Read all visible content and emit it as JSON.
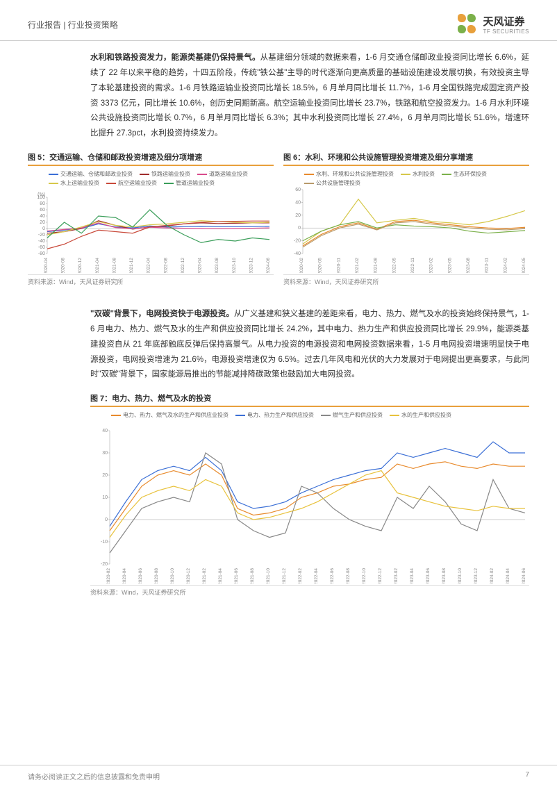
{
  "header": {
    "category": "行业报告 | 行业投资策略",
    "logo_cn": "天风证券",
    "logo_en": "TF SECURITIES",
    "petal_colors": [
      "#e8a03c",
      "#7bb04a",
      "#7bb04a",
      "#e8a03c"
    ]
  },
  "para1_lead": "水利和铁路投资发力，能源类基建仍保持景气。",
  "para1_body": "从基建细分领域的数据来看，1-6 月交通仓储邮政业投资同比增长 6.6%，延续了 22 年以来平稳的趋势，十四五阶段，传统\"铁公基\"主导的时代逐渐向更高质量的基础设施建设发展切换，有效投资主导了本轮基建投资的需求。1-6 月铁路运输业投资同比增长 18.5%，6 月单月同比增长 11.7%，1-6 月全国铁路完成固定资产投资 3373 亿元，同比增长 10.6%，创历史同期新高。航空运输业投资同比增长 23.7%，铁路和航空投资发力。1-6 月水利环境公共设施投资同比增长 0.7%，6 月单月同比增长 6.3%；其中水利投资同比增长 27.4%，6 月单月同比增长 51.6%，增速环比提升 27.3pct，水利投资持续发力。",
  "para2_lead": "\"双碳\"背景下，电网投资快于电源投资。",
  "para2_body": "从广义基建和狭义基建的差距来看，电力、热力、燃气及水的投资始终保持景气，1-6 月电力、热力、燃气及水的生产和供应投资同比增长 24.2%，其中电力、热力生产和供应投资同比增长 29.9%，能源类基建投资自从 21 年底部触底反弹后保持高景气。从电力投资的电源投资和电网投资数据来看，1-5 月电网投资增速明显快于电源投资，电网投资增速为 21.6%，电源投资增速仅为 6.5%。过去几年风电和光伏的大力发展对于电网提出更高要求，与此同时\"双碳\"背景下，国家能源局推出的节能减排降碳政策也鼓励加大电网投资。",
  "chart5": {
    "title": "图 5：交通运输、仓储和邮政投资增速及细分项增速",
    "source": "资料来源：Wind，天风证券研究所",
    "y_unit": "(%)",
    "ylim": [
      -80,
      100
    ],
    "ytick_step": 20,
    "x_labels": [
      "2020-04",
      "2020-08",
      "2020-12",
      "2021-04",
      "2021-08",
      "2021-12",
      "2022-04",
      "2022-08",
      "2022-12",
      "2023-04",
      "2023-08",
      "2023-10",
      "2023-12",
      "2024-06"
    ],
    "series": [
      {
        "name": "交通运输、仓储和邮政业投资",
        "color": "#3b6fd6",
        "data": [
          -10,
          -5,
          0,
          15,
          5,
          2,
          8,
          5,
          6,
          7,
          6,
          6,
          6,
          7
        ]
      },
      {
        "name": "铁路运输业投资",
        "color": "#a02c2c",
        "data": [
          -15,
          -10,
          0,
          25,
          10,
          -2,
          5,
          8,
          15,
          18,
          16,
          17,
          18,
          18
        ]
      },
      {
        "name": "道路运输业投资",
        "color": "#d94a8c",
        "data": [
          -8,
          -3,
          2,
          18,
          3,
          -1,
          4,
          2,
          1,
          0,
          -1,
          0,
          1,
          2
        ]
      },
      {
        "name": "水上运输业投资",
        "color": "#d6c84a",
        "data": [
          -20,
          -10,
          5,
          22,
          10,
          5,
          12,
          15,
          20,
          25,
          22,
          20,
          18,
          20
        ]
      },
      {
        "name": "航空运输业投资",
        "color": "#c94a3b",
        "data": [
          -65,
          -50,
          -25,
          -5,
          -10,
          -15,
          5,
          10,
          15,
          20,
          22,
          23,
          24,
          24
        ]
      },
      {
        "name": "管道运输业投资",
        "color": "#3b9e5a",
        "data": [
          -30,
          20,
          -15,
          40,
          35,
          5,
          60,
          10,
          -20,
          -45,
          -35,
          -40,
          -30,
          -35
        ]
      }
    ]
  },
  "chart6": {
    "title": "图 6：水利、环境和公共设施管理投资增速及细分享增速",
    "source": "资料来源：Wind，天风证券研究所",
    "ylim": [
      -40,
      60
    ],
    "ytick_step": 20,
    "x_labels": [
      "2020-02",
      "2020-05",
      "2020-11",
      "2021-02",
      "2021-08",
      "2022-05",
      "2022-11",
      "2023-02",
      "2023-05",
      "2023-08",
      "2023-11",
      "2024-02",
      "2024-05"
    ],
    "series": [
      {
        "name": "水利、环境和公共设施管理投资",
        "color": "#e88a2c",
        "data": [
          -28,
          -10,
          2,
          8,
          -2,
          10,
          12,
          8,
          5,
          2,
          0,
          -1,
          1
        ]
      },
      {
        "name": "水利投资",
        "color": "#d6c84a",
        "data": [
          -25,
          -5,
          5,
          45,
          8,
          12,
          15,
          10,
          8,
          5,
          10,
          18,
          27
        ]
      },
      {
        "name": "生态环保投资",
        "color": "#7bb04a",
        "data": [
          -20,
          -5,
          5,
          10,
          0,
          5,
          3,
          2,
          0,
          -5,
          -8,
          -6,
          -4
        ]
      },
      {
        "name": "公共设施管理投资",
        "color": "#b89a6a",
        "data": [
          -30,
          -12,
          0,
          6,
          -3,
          8,
          10,
          6,
          3,
          0,
          -2,
          -3,
          -1
        ]
      }
    ]
  },
  "chart7": {
    "title": "图 7：电力、热力、燃气及水的投资",
    "source": "资料来源：Wind，天风证券研究所",
    "ylim": [
      -20,
      40
    ],
    "ytick_step": 10,
    "x_labels": [
      "2020-02",
      "2020-04",
      "2020-06",
      "2020-08",
      "2020-10",
      "2020-12",
      "2021-02",
      "2021-04",
      "2021-06",
      "2021-08",
      "2021-10",
      "2021-12",
      "2022-02",
      "2022-04",
      "2022-06",
      "2022-08",
      "2022-10",
      "2022-12",
      "2023-02",
      "2023-04",
      "2023-06",
      "2023-08",
      "2023-10",
      "2023-12",
      "2024-02",
      "2024-04",
      "2024-06"
    ],
    "series": [
      {
        "name": "电力、热力、燃气及水的生产和供应业投资",
        "color": "#e88a2c",
        "data": [
          -5,
          5,
          15,
          20,
          22,
          20,
          25,
          20,
          5,
          2,
          3,
          5,
          10,
          12,
          15,
          16,
          18,
          19,
          25,
          23,
          25,
          26,
          24,
          23,
          25,
          24,
          24
        ]
      },
      {
        "name": "电力、热力生产和供应投资",
        "color": "#3b6fd6",
        "data": [
          -3,
          8,
          18,
          22,
          24,
          22,
          28,
          22,
          8,
          5,
          6,
          8,
          12,
          15,
          18,
          20,
          22,
          23,
          30,
          28,
          30,
          32,
          30,
          28,
          35,
          30,
          30
        ]
      },
      {
        "name": "燃气生产和供应投资",
        "color": "#888888",
        "data": [
          -15,
          -5,
          5,
          8,
          10,
          8,
          30,
          25,
          0,
          -5,
          -8,
          -6,
          15,
          12,
          5,
          0,
          -3,
          -5,
          10,
          5,
          15,
          8,
          -2,
          -5,
          18,
          5,
          3
        ]
      },
      {
        "name": "水的生产和供应投资",
        "color": "#e8c23c",
        "data": [
          -8,
          2,
          10,
          13,
          15,
          13,
          18,
          15,
          3,
          0,
          1,
          3,
          5,
          8,
          12,
          16,
          20,
          22,
          12,
          10,
          8,
          6,
          5,
          4,
          6,
          5,
          5
        ]
      }
    ]
  },
  "footer": {
    "disclaimer": "请务必阅读正文之后的信息披露和免责申明",
    "page": "7"
  },
  "colors": {
    "accent": "#e8a03c",
    "text": "#333333",
    "text_light": "#888888",
    "border": "#cccccc"
  }
}
